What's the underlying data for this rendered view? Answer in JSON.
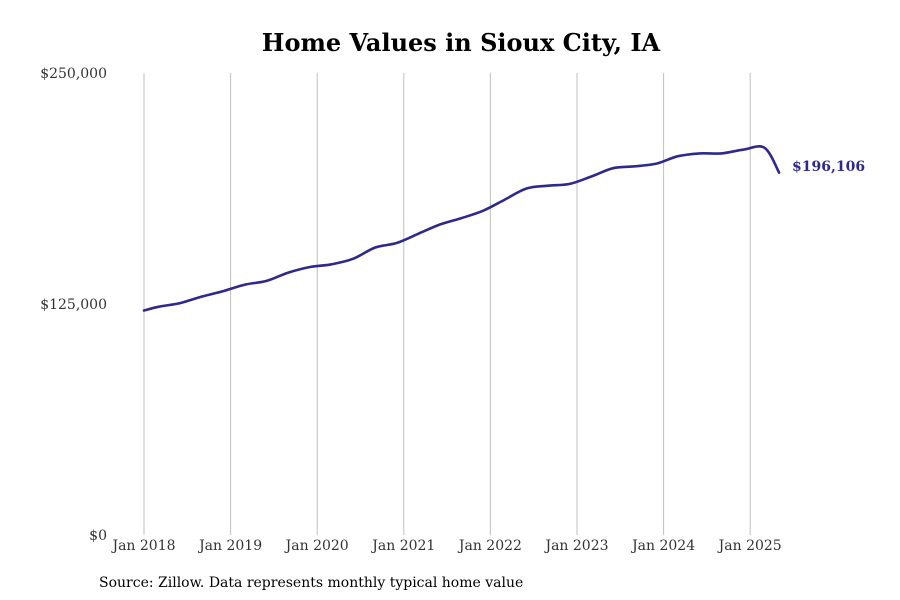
{
  "chart_data": {
    "type": "line",
    "title": "Home Values in Sioux City, IA",
    "source": "Source: Zillow. Data represents monthly typical home value",
    "xlabel": "",
    "ylabel": "",
    "x_ticks": [
      "Jan 2018",
      "Jan 2019",
      "Jan 2020",
      "Jan 2021",
      "Jan 2022",
      "Jan 2023",
      "Jan 2024",
      "Jan 2025"
    ],
    "x_range": [
      "2018-01",
      "2025-05"
    ],
    "y_ticks": [
      {
        "value": 0,
        "label": "$0"
      },
      {
        "value": 125000,
        "label": "$125,000"
      },
      {
        "value": 250000,
        "label": "$250,000"
      }
    ],
    "ylim": [
      0,
      250000
    ],
    "grid": "vertical",
    "line_color": "#2e2a8c",
    "end_label": "$196,106",
    "series": [
      {
        "x": [
          "2018-01",
          "2018-03",
          "2018-06",
          "2018-09",
          "2018-12",
          "2019-03",
          "2019-06",
          "2019-09",
          "2019-12",
          "2020-03",
          "2020-06",
          "2020-09",
          "2020-12",
          "2021-03",
          "2021-06",
          "2021-09",
          "2021-12",
          "2022-03",
          "2022-06",
          "2022-09",
          "2022-12",
          "2023-03",
          "2023-06",
          "2023-09",
          "2023-12",
          "2024-03",
          "2024-06",
          "2024-09",
          "2024-12",
          "2025-03",
          "2025-05"
        ],
        "values": [
          121500,
          123500,
          125500,
          129000,
          132000,
          135500,
          137500,
          142000,
          145000,
          146500,
          149500,
          155500,
          158000,
          163000,
          168000,
          171500,
          175500,
          181500,
          187500,
          189000,
          190000,
          194000,
          198500,
          199500,
          201000,
          205000,
          206500,
          206500,
          208500,
          209500,
          196106
        ]
      }
    ]
  }
}
